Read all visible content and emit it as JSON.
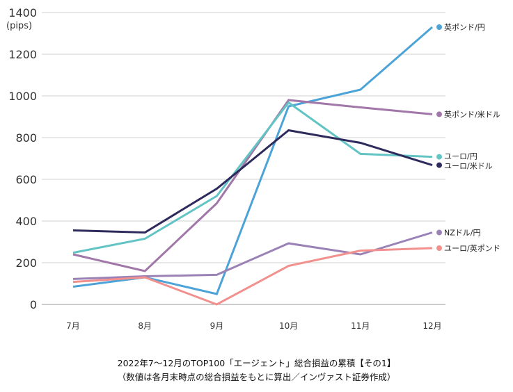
{
  "chart_data": {
    "type": "line",
    "unit_label": "(pips)",
    "ylim": [
      0,
      1400
    ],
    "yticks": [
      0,
      200,
      400,
      600,
      800,
      1000,
      1200,
      1400
    ],
    "categories": [
      "7月",
      "8月",
      "9月",
      "10月",
      "11月",
      "12月"
    ],
    "grid": true,
    "series": [
      {
        "name": "英ポンド/円",
        "color": "#4ca3d8",
        "values": [
          85,
          130,
          50,
          950,
          1030,
          1330
        ]
      },
      {
        "name": "英ポンド/米ドル",
        "color": "#a077a8",
        "values": [
          240,
          160,
          485,
          980,
          945,
          912
        ]
      },
      {
        "name": "ユーロ/円",
        "color": "#62c4c4",
        "values": [
          248,
          315,
          520,
          968,
          722,
          708
        ]
      },
      {
        "name": "ユーロ/米ドル",
        "color": "#2d2a5c",
        "values": [
          355,
          345,
          555,
          835,
          775,
          668
        ]
      },
      {
        "name": "NZドル/円",
        "color": "#9a82b6",
        "values": [
          122,
          135,
          142,
          293,
          240,
          345
        ]
      },
      {
        "name": "ユーロ/英ポンド",
        "color": "#f1908c",
        "values": [
          108,
          130,
          0,
          185,
          258,
          270
        ]
      }
    ]
  },
  "caption": {
    "line1": "2022年7〜12月のTOP100「エージェント」総合損益の累積【その1】",
    "line2": "（数値は各月末時点の総合損益をもとに算出／インヴァスト証券作成）"
  }
}
